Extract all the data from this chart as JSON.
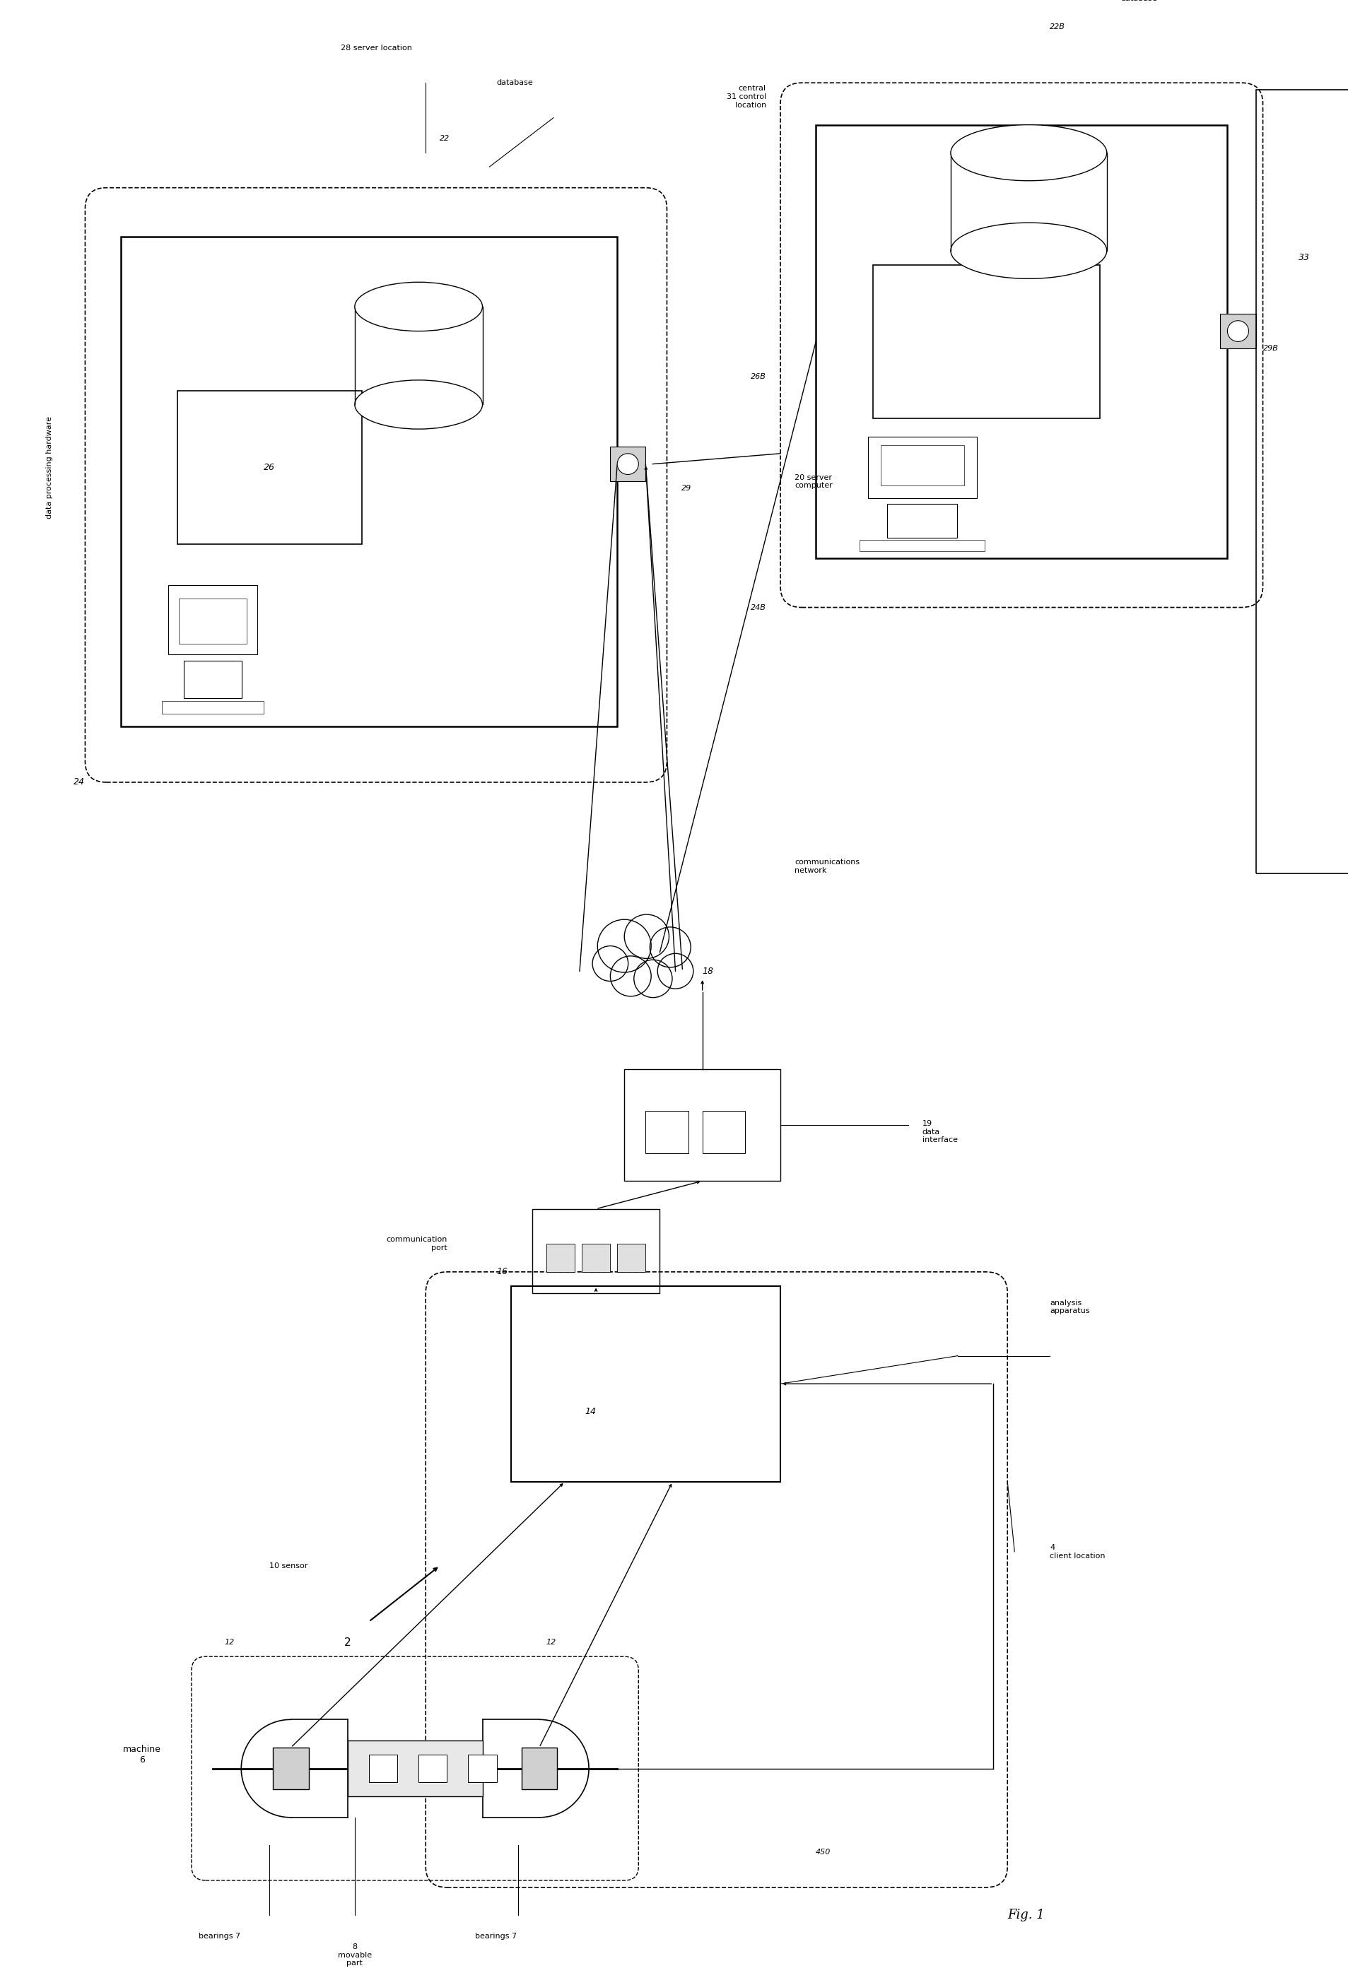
{
  "bg_color": "#ffffff",
  "fig_width": 19.07,
  "fig_height": 27.92,
  "labels": {
    "fig_label": "Fig. 1",
    "fig_num": "2",
    "machine": "machine\n6",
    "bearings_top": "bearings 7",
    "movable_part": "8\nmovable\npart",
    "bearings_bot": "bearings 7",
    "sensor": "10 sensor",
    "ref12_left": "12",
    "ref12_right": "12",
    "comm_port": "communication\nport",
    "ref16": "16",
    "ref14": "14",
    "analysis_apparatus": "analysis\napparatus",
    "data_interface": "19\ndata\ninterface",
    "ref18": "18",
    "comms_network": "communications\nnetwork",
    "ref20": "20 server\ncomputer",
    "data_proc_hw": "data processing hardware",
    "ref24": "24",
    "ref22": "22",
    "database_left": "database",
    "ref26": "26",
    "ref28": "28 server location",
    "ref29": "29",
    "client_location": "4\nclient location",
    "ref450": "450",
    "central_control": "central\n31 control\nlocation",
    "ref22B": "22B",
    "database_right": "database",
    "ref26B": "26B",
    "ref24B": "24B",
    "ref29B": "29B",
    "ref33": "33"
  }
}
